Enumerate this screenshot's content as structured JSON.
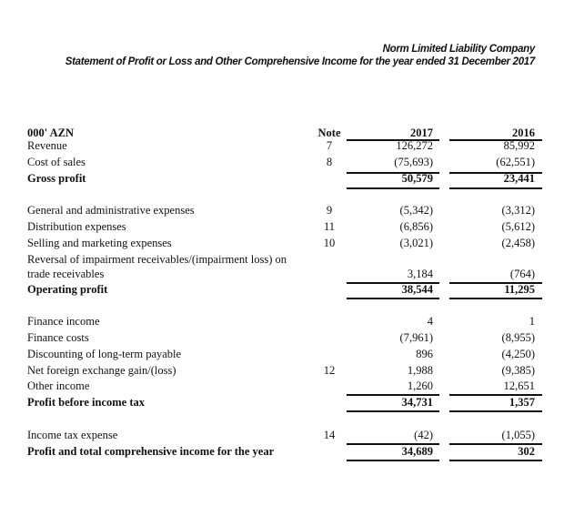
{
  "header": {
    "company": "Norm Limited Liability Company",
    "statement": "Statement of Profit or Loss and Other Comprehensive Income for the year ended 31 December 2017"
  },
  "columns": {
    "unit": "000' AZN",
    "note": "Note",
    "y2017": "2017",
    "y2016": "2016"
  },
  "rows": [
    {
      "label": "Revenue",
      "note": "7",
      "v2017": "126,272",
      "v2016": "85,992"
    },
    {
      "label": "Cost of sales",
      "note": "8",
      "v2017": "(75,693)",
      "v2016": "(62,551)"
    },
    {
      "label": "Gross profit",
      "note": "",
      "v2017": "50,579",
      "v2016": "23,441"
    },
    {
      "label": "General and administrative expenses",
      "note": "9",
      "v2017": "(5,342)",
      "v2016": "(3,312)"
    },
    {
      "label": "Distribution expenses",
      "note": "11",
      "v2017": "(6,856)",
      "v2016": "(5,612)"
    },
    {
      "label": "Selling and marketing expenses",
      "note": "10",
      "v2017": "(3,021)",
      "v2016": "(2,458)"
    },
    {
      "label": "Reversal of impairment receivables/(impairment loss) on",
      "label2": "trade receivables",
      "note": "",
      "v2017": "3,184",
      "v2016": "(764)"
    },
    {
      "label": "Operating profit",
      "note": "",
      "v2017": "38,544",
      "v2016": "11,295"
    },
    {
      "label": "Finance income",
      "note": "",
      "v2017": "4",
      "v2016": "1"
    },
    {
      "label": "Finance costs",
      "note": "",
      "v2017": "(7,961)",
      "v2016": "(8,955)"
    },
    {
      "label": "Discounting of long-term payable",
      "note": "",
      "v2017": "896",
      "v2016": "(4,250)"
    },
    {
      "label": "Net foreign exchange gain/(loss)",
      "note": "12",
      "v2017": "1,988",
      "v2016": "(9,385)"
    },
    {
      "label": "Other income",
      "note": "",
      "v2017": "1,260",
      "v2016": "12,651"
    },
    {
      "label": "Profit before income tax",
      "note": "",
      "v2017": "34,731",
      "v2016": "1,357"
    },
    {
      "label": "Income tax expense",
      "note": "14",
      "v2017": "(42)",
      "v2016": "(1,055)"
    },
    {
      "label": "Profit and total comprehensive income for the year",
      "note": "",
      "v2017": "34,689",
      "v2016": "302"
    }
  ]
}
